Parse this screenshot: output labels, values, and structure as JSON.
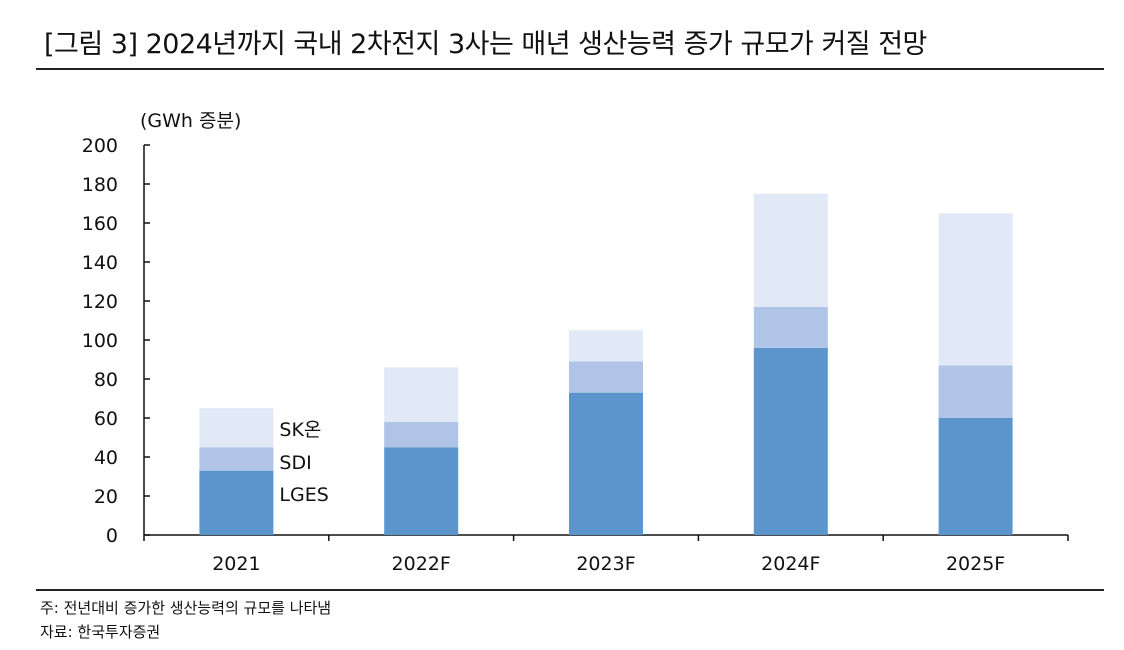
{
  "title": "[그림 3] 2024년까지 국내 2차전지 3사는 매년 생산능력 증가 규모가 커질 전망",
  "footnote": "주: 전년대비 증가한 생산능력의 규모를 나타냄",
  "source": "자료: 한국투자증권",
  "colors": {
    "LGES": "#5b95cc",
    "SDI": "#afc4e6",
    "SK온": "#e1e8f6"
  },
  "chart_data": {
    "type": "bar",
    "stacked": true,
    "unit_label": "(GWh 증분)",
    "categories": [
      "2021",
      "2022F",
      "2023F",
      "2024F",
      "2025F"
    ],
    "series": [
      {
        "name": "LGES",
        "values": [
          33,
          45,
          73,
          96,
          60
        ]
      },
      {
        "name": "SDI",
        "values": [
          12,
          13,
          16,
          21,
          27
        ]
      },
      {
        "name": "SK온",
        "values": [
          20,
          28,
          16,
          58,
          78
        ]
      }
    ],
    "ylim": [
      0,
      200
    ],
    "yticks": [
      0,
      20,
      40,
      60,
      80,
      100,
      120,
      140,
      160,
      180,
      200
    ],
    "legend_position": "inside-left (labels beside the 2021 bar)",
    "grid": false
  }
}
